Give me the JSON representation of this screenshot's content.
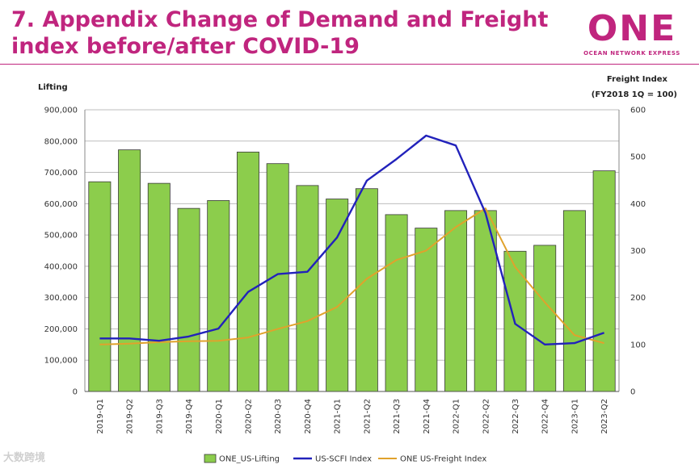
{
  "page": {
    "title_line1": "7. Appendix Change of Demand and Freight",
    "title_line2": "index before/after COVID-19",
    "logo_word": "ONE",
    "logo_sub": "OCEAN NETWORK EXPRESS",
    "watermark": "大数跨境"
  },
  "colors": {
    "title": "#c0257e",
    "bar": "#8ccd4c",
    "bar_border": "#3a3a3a",
    "scfi_line": "#2222bb",
    "freight_line": "#e0a22c"
  },
  "chart_data": {
    "type": "bar",
    "categories": [
      "2019-Q1",
      "2019-Q2",
      "2019-Q3",
      "2019-Q4",
      "2020-Q1",
      "2020-Q2",
      "2020-Q3",
      "2020-Q4",
      "2021-Q1",
      "2021-Q2",
      "2021-Q3",
      "2021-Q4",
      "2022-Q1",
      "2022-Q2",
      "2022-Q3",
      "2022-Q4",
      "2023-Q1",
      "2023-Q2"
    ],
    "ylabel": "Lifting",
    "y2label_line1": "Freight Index",
    "y2label_line2": "(FY2018 1Q = 100)",
    "ylim": [
      0,
      900000
    ],
    "y2lim": [
      0,
      600
    ],
    "yticks": [
      "0",
      "100,000",
      "200,000",
      "300,000",
      "400,000",
      "500,000",
      "600,000",
      "700,000",
      "800,000",
      "900,000"
    ],
    "y2ticks": [
      "0",
      "100",
      "200",
      "300",
      "400",
      "500",
      "600"
    ],
    "grid": true,
    "legend_position": "bottom",
    "series": [
      {
        "name": "ONE_US-Lifting",
        "kind": "bar",
        "axis": "left",
        "values": [
          670000,
          772000,
          665000,
          585000,
          610000,
          765000,
          728000,
          658000,
          615000,
          648000,
          565000,
          522000,
          578000,
          578000,
          448000,
          467000,
          578000,
          705000
        ]
      },
      {
        "name": "US-SCFI Index",
        "kind": "line",
        "axis": "right",
        "values": [
          113,
          113,
          108,
          117,
          134,
          212,
          250,
          255,
          328,
          449,
          495,
          545,
          524,
          380,
          144,
          100,
          103,
          125
        ]
      },
      {
        "name": "ONE US-Freight Index",
        "kind": "line",
        "axis": "right",
        "values": [
          100,
          102,
          105,
          107,
          108,
          115,
          133,
          150,
          180,
          240,
          280,
          300,
          350,
          390,
          265,
          190,
          120,
          103
        ]
      }
    ]
  }
}
